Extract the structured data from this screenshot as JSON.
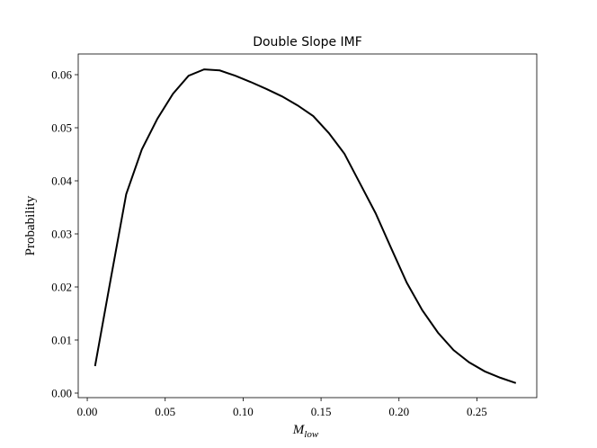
{
  "chart_data": {
    "type": "line",
    "title": "Double Slope IMF",
    "xlabel": "M",
    "xlabel_subscript": "low",
    "ylabel": "Probability",
    "x": [
      0.005,
      0.015,
      0.025,
      0.035,
      0.045,
      0.055,
      0.065,
      0.075,
      0.085,
      0.095,
      0.105,
      0.115,
      0.125,
      0.135,
      0.145,
      0.155,
      0.165,
      0.175,
      0.185,
      0.195,
      0.205,
      0.215,
      0.225,
      0.235,
      0.245,
      0.255,
      0.265,
      0.275
    ],
    "series": [
      {
        "color": "#000000",
        "values": [
          0.0051,
          0.0214,
          0.0375,
          0.0459,
          0.0517,
          0.0564,
          0.0598,
          0.061,
          0.0608,
          0.0598,
          0.0586,
          0.0573,
          0.0559,
          0.0542,
          0.0522,
          0.049,
          0.0451,
          0.0395,
          0.0339,
          0.0273,
          0.0208,
          0.0156,
          0.0114,
          0.0081,
          0.0058,
          0.0041,
          0.0029,
          0.0019
        ]
      }
    ],
    "xlim": [
      -0.0058,
      0.2884
    ],
    "ylim": [
      -0.00085,
      0.0639
    ],
    "xticks": [
      {
        "value": 0,
        "label": "0.00"
      },
      0.05,
      {
        "value": 0.1,
        "label": "0.10"
      },
      0.15,
      {
        "value": 0.2,
        "label": "0.20"
      },
      0.25
    ],
    "yticks": [
      {
        "value": 0,
        "label": "0.00"
      },
      0.01,
      0.02,
      0.03,
      0.04,
      0.05,
      0.06
    ]
  }
}
